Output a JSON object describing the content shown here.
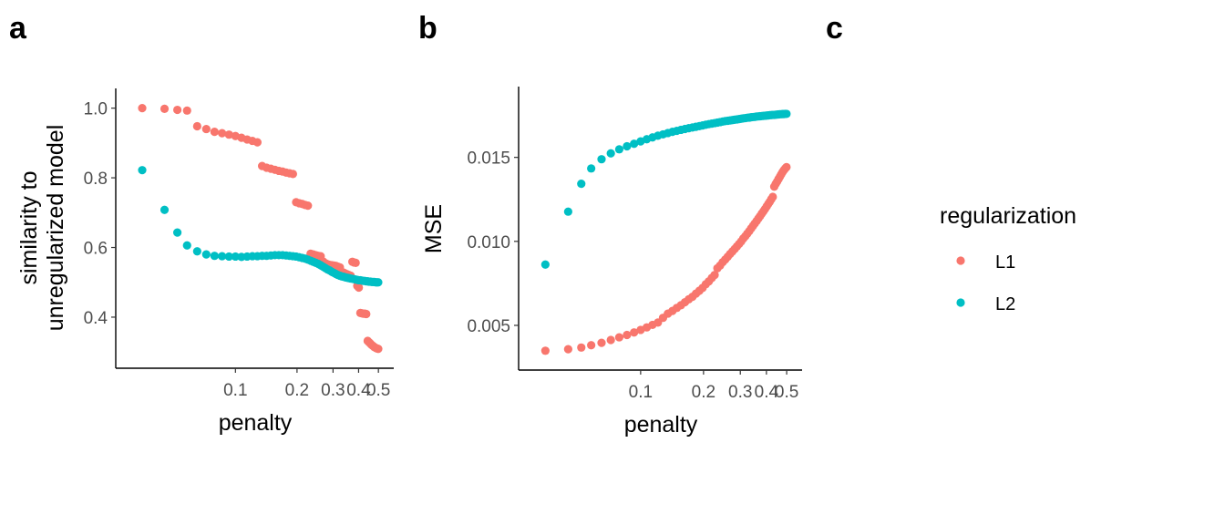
{
  "panels": {
    "a": "a",
    "b": "b",
    "c": "c"
  },
  "colors": {
    "L1": "#F8766D",
    "L2": "#00BFC4"
  },
  "legend": {
    "title": "regularization",
    "items": [
      "L1",
      "L2"
    ]
  },
  "chart_data": [
    {
      "id": "a",
      "type": "scatter",
      "xlabel": "penalty",
      "ylabel_line1": "similarity to",
      "ylabel_line2": "unregularized model",
      "x_scale": "log",
      "x_ticks": [
        0.1,
        0.2,
        0.3,
        0.4,
        0.5
      ],
      "x_tick_labels": [
        "0.1",
        "0.2",
        "0.3",
        "0.4",
        "0.5"
      ],
      "xlim": [
        0.03,
        0.52
      ],
      "y_ticks": [
        0.4,
        0.6,
        0.8,
        1.0
      ],
      "y_tick_labels": [
        "0.4",
        "0.6",
        "0.8",
        "1.0"
      ],
      "ylim": [
        0.29,
        1.02
      ],
      "series": [
        {
          "name": "L1",
          "x": [
            0.035,
            0.045,
            0.052,
            0.058,
            0.065,
            0.072,
            0.079,
            0.086,
            0.093,
            0.1,
            0.107,
            0.114,
            0.121,
            0.128,
            0.135,
            0.142,
            0.149,
            0.156,
            0.163,
            0.17,
            0.177,
            0.184,
            0.191,
            0.198,
            0.205,
            0.212,
            0.219,
            0.226,
            0.233,
            0.24,
            0.247,
            0.254,
            0.261,
            0.268,
            0.275,
            0.282,
            0.289,
            0.296,
            0.303,
            0.31,
            0.317,
            0.324,
            0.331,
            0.338,
            0.345,
            0.352,
            0.359,
            0.366,
            0.373,
            0.38,
            0.387,
            0.394,
            0.401,
            0.408,
            0.415,
            0.422,
            0.429,
            0.436,
            0.443,
            0.45,
            0.457,
            0.464,
            0.471,
            0.478,
            0.485,
            0.492,
            0.499
          ],
          "y": [
            1.0,
            0.998,
            0.995,
            0.993,
            0.948,
            0.94,
            0.932,
            0.928,
            0.924,
            0.92,
            0.915,
            0.91,
            0.906,
            0.902,
            0.834,
            0.829,
            0.826,
            0.823,
            0.82,
            0.818,
            0.815,
            0.813,
            0.811,
            0.73,
            0.727,
            0.725,
            0.722,
            0.72,
            0.582,
            0.58,
            0.578,
            0.576,
            0.575,
            0.56,
            0.555,
            0.552,
            0.55,
            0.549,
            0.548,
            0.547,
            0.545,
            0.543,
            0.53,
            0.528,
            0.525,
            0.523,
            0.521,
            0.519,
            0.559,
            0.557,
            0.556,
            0.49,
            0.485,
            0.412,
            0.411,
            0.41,
            0.41,
            0.409,
            0.332,
            0.328,
            0.324,
            0.32,
            0.317,
            0.314,
            0.312,
            0.31,
            0.309
          ]
        },
        {
          "name": "L2",
          "x": [
            0.035,
            0.045,
            0.052,
            0.058,
            0.065,
            0.072,
            0.079,
            0.086,
            0.093,
            0.1,
            0.107,
            0.114,
            0.121,
            0.128,
            0.135,
            0.142,
            0.149,
            0.156,
            0.163,
            0.17,
            0.177,
            0.184,
            0.191,
            0.198,
            0.205,
            0.212,
            0.219,
            0.226,
            0.233,
            0.24,
            0.247,
            0.254,
            0.261,
            0.268,
            0.275,
            0.282,
            0.289,
            0.296,
            0.303,
            0.31,
            0.317,
            0.324,
            0.331,
            0.338,
            0.345,
            0.352,
            0.359,
            0.366,
            0.373,
            0.38,
            0.387,
            0.394,
            0.401,
            0.408,
            0.415,
            0.422,
            0.429,
            0.436,
            0.443,
            0.45,
            0.457,
            0.464,
            0.471,
            0.478,
            0.485,
            0.492,
            0.499
          ],
          "y": [
            0.822,
            0.708,
            0.643,
            0.606,
            0.589,
            0.58,
            0.576,
            0.575,
            0.574,
            0.574,
            0.573,
            0.574,
            0.575,
            0.575,
            0.576,
            0.576,
            0.577,
            0.578,
            0.578,
            0.578,
            0.577,
            0.576,
            0.575,
            0.574,
            0.572,
            0.57,
            0.568,
            0.565,
            0.562,
            0.559,
            0.556,
            0.553,
            0.549,
            0.545,
            0.541,
            0.537,
            0.534,
            0.53,
            0.527,
            0.524,
            0.521,
            0.519,
            0.517,
            0.516,
            0.514,
            0.513,
            0.512,
            0.511,
            0.51,
            0.509,
            0.508,
            0.507,
            0.506,
            0.506,
            0.505,
            0.504,
            0.504,
            0.503,
            0.503,
            0.502,
            0.502,
            0.501,
            0.501,
            0.501,
            0.5,
            0.5,
            0.5
          ]
        }
      ]
    },
    {
      "id": "b",
      "type": "scatter",
      "xlabel": "penalty",
      "ylabel": "MSE",
      "x_scale": "log",
      "x_ticks": [
        0.1,
        0.2,
        0.3,
        0.4,
        0.5
      ],
      "x_tick_labels": [
        "0.1",
        "0.2",
        "0.3",
        "0.4",
        "0.5"
      ],
      "xlim": [
        0.03,
        0.52
      ],
      "y_ticks": [
        0.005,
        0.01,
        0.015
      ],
      "y_tick_labels": [
        "0.005",
        "0.010",
        "0.015"
      ],
      "ylim": [
        0.0031,
        0.0184
      ],
      "series": [
        {
          "name": "L1",
          "x": [
            0.035,
            0.045,
            0.052,
            0.058,
            0.065,
            0.072,
            0.079,
            0.086,
            0.093,
            0.1,
            0.107,
            0.114,
            0.121,
            0.128,
            0.135,
            0.142,
            0.149,
            0.156,
            0.163,
            0.17,
            0.177,
            0.184,
            0.191,
            0.198,
            0.205,
            0.212,
            0.219,
            0.226,
            0.233,
            0.24,
            0.247,
            0.254,
            0.261,
            0.268,
            0.275,
            0.282,
            0.289,
            0.296,
            0.303,
            0.31,
            0.317,
            0.324,
            0.331,
            0.338,
            0.345,
            0.352,
            0.359,
            0.366,
            0.373,
            0.38,
            0.387,
            0.394,
            0.401,
            0.408,
            0.415,
            0.422,
            0.429,
            0.436,
            0.443,
            0.45,
            0.457,
            0.464,
            0.471,
            0.478,
            0.485,
            0.492,
            0.499
          ],
          "y": [
            0.00349,
            0.00358,
            0.00368,
            0.00382,
            0.00396,
            0.00413,
            0.00429,
            0.00443,
            0.00458,
            0.00473,
            0.00488,
            0.00503,
            0.00517,
            0.00545,
            0.0057,
            0.00586,
            0.00604,
            0.0062,
            0.00638,
            0.00655,
            0.0067,
            0.00689,
            0.00706,
            0.00723,
            0.00745,
            0.00762,
            0.00782,
            0.008,
            0.0084,
            0.00856,
            0.00876,
            0.00892,
            0.00908,
            0.00925,
            0.0094,
            0.00955,
            0.0097,
            0.00985,
            0.01,
            0.01017,
            0.01031,
            0.01046,
            0.01061,
            0.01077,
            0.01092,
            0.01107,
            0.01121,
            0.01136,
            0.0115,
            0.01165,
            0.01179,
            0.01193,
            0.01208,
            0.01222,
            0.01236,
            0.01251,
            0.01265,
            0.01326,
            0.01342,
            0.01356,
            0.01371,
            0.01385,
            0.01399,
            0.01413,
            0.01424,
            0.01434,
            0.01442
          ]
        },
        {
          "name": "L2",
          "x": [
            0.035,
            0.045,
            0.052,
            0.058,
            0.065,
            0.072,
            0.079,
            0.086,
            0.093,
            0.1,
            0.107,
            0.114,
            0.121,
            0.128,
            0.135,
            0.142,
            0.149,
            0.156,
            0.163,
            0.17,
            0.177,
            0.184,
            0.191,
            0.198,
            0.205,
            0.212,
            0.219,
            0.226,
            0.233,
            0.24,
            0.247,
            0.254,
            0.261,
            0.268,
            0.275,
            0.282,
            0.289,
            0.296,
            0.303,
            0.31,
            0.317,
            0.324,
            0.331,
            0.338,
            0.345,
            0.352,
            0.359,
            0.366,
            0.373,
            0.38,
            0.387,
            0.394,
            0.401,
            0.408,
            0.415,
            0.422,
            0.429,
            0.436,
            0.443,
            0.45,
            0.457,
            0.464,
            0.471,
            0.478,
            0.485,
            0.492,
            0.499
          ],
          "y": [
            0.00862,
            0.01177,
            0.01343,
            0.01434,
            0.01489,
            0.01524,
            0.01548,
            0.01566,
            0.01581,
            0.01595,
            0.01608,
            0.01619,
            0.01629,
            0.01637,
            0.01645,
            0.01652,
            0.01658,
            0.01664,
            0.01669,
            0.01674,
            0.01678,
            0.01682,
            0.01686,
            0.0169,
            0.01694,
            0.01698,
            0.01701,
            0.01704,
            0.01707,
            0.0171,
            0.01713,
            0.01716,
            0.01718,
            0.0172,
            0.01722,
            0.01724,
            0.01726,
            0.01728,
            0.0173,
            0.01732,
            0.01734,
            0.01736,
            0.01737,
            0.01739,
            0.0174,
            0.01741,
            0.01743,
            0.01744,
            0.01745,
            0.01746,
            0.01747,
            0.01748,
            0.01749,
            0.0175,
            0.01751,
            0.01752,
            0.01753,
            0.01753,
            0.01754,
            0.01755,
            0.01756,
            0.01757,
            0.01757,
            0.01758,
            0.01758,
            0.01759,
            0.01759
          ]
        }
      ]
    }
  ]
}
